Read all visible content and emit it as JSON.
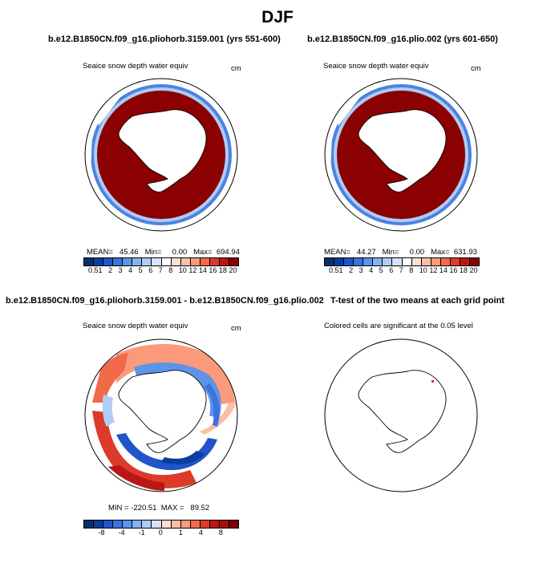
{
  "page_title": "DJF",
  "panels": [
    {
      "title": "b.e12.B1850CN.f09_g16.pliohorb.3159.001 (yrs 551-600)",
      "variable": "Seaice snow depth water equiv",
      "units": "cm",
      "stats": "MEAN=   45.46   Min=     0.00   Max=  694.94"
    },
    {
      "title": "b.e12.B1850CN.f09_g16.plio.002 (yrs 601-650)",
      "variable": "Seaice snow depth water equiv",
      "units": "cm",
      "stats": "MEAN=   44.27   Min=     0.00   Max=  631.93"
    },
    {
      "title": "b.e12.B1850CN.f09_g16.pliohorb.3159.001 - b.e12.B1850CN.f09_g16.plio.002",
      "variable": "Seaice snow depth water equiv",
      "units": "cm",
      "stats": "MIN = -220.51  MAX =   89.52"
    },
    {
      "title": "T-test of the two means at each grid point",
      "variable": "Colored cells are significant at the 0.05 level"
    }
  ],
  "colorbars": {
    "abs": {
      "labels": [
        "0.5",
        "1",
        "2",
        "3",
        "4",
        "5",
        "6",
        "7",
        "8",
        "10",
        "12",
        "14",
        "16",
        "18",
        "20"
      ],
      "colors": [
        "#08306b",
        "#0b3d9e",
        "#2054c8",
        "#3a74dd",
        "#5d94e8",
        "#85b2f0",
        "#aecdf6",
        "#d4e4f9",
        "#ffffff",
        "#fde0d2",
        "#fcbea5",
        "#fb9a7a",
        "#f2694a",
        "#dc3b2a",
        "#bb1616",
        "#8b0000"
      ]
    },
    "diff": {
      "labels": [
        "",
        "-8",
        "",
        "-4",
        "",
        "-1",
        "",
        "0",
        "",
        "1",
        "",
        "4",
        "",
        "8",
        ""
      ],
      "colors": [
        "#08306b",
        "#0b3d9e",
        "#2054c8",
        "#3a74dd",
        "#5d94e8",
        "#85b2f0",
        "#aecdf6",
        "#d4e4f9",
        "#fde0d2",
        "#fcbea5",
        "#fb9a7a",
        "#f2694a",
        "#dc3b2a",
        "#bb1616",
        "#a50f0f",
        "#7f0000"
      ]
    }
  },
  "colors": {
    "ice_dark_red": "#8b0000",
    "edge_blue": "#3a74dd",
    "diff_red": "#dc3b2a",
    "diff_blue": "#2054c8"
  }
}
